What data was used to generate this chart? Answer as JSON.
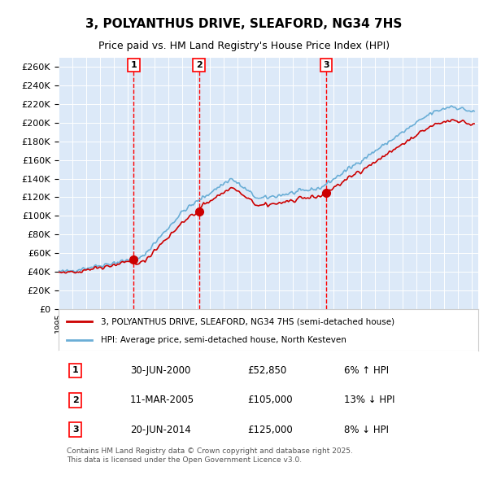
{
  "title": "3, POLYANTHUS DRIVE, SLEAFORD, NG34 7HS",
  "subtitle": "Price paid vs. HM Land Registry's House Price Index (HPI)",
  "legend_line1": "3, POLYANTHUS DRIVE, SLEAFORD, NG34 7HS (semi-detached house)",
  "legend_line2": "HPI: Average price, semi-detached house, North Kesteven",
  "sale1_date": "30-JUN-2000",
  "sale1_price": 52850,
  "sale1_pct": "6% ↑ HPI",
  "sale2_date": "11-MAR-2005",
  "sale2_price": 105000,
  "sale2_pct": "13% ↓ HPI",
  "sale3_date": "20-JUN-2014",
  "sale3_price": 125000,
  "sale3_pct": "8% ↓ HPI",
  "footer": "Contains HM Land Registry data © Crown copyright and database right 2025.\nThis data is licensed under the Open Government Licence v3.0.",
  "bg_color": "#dce9f8",
  "plot_bg_color": "#dce9f8",
  "hpi_color": "#6aaed6",
  "price_color": "#cc0000",
  "dashed_color": "#ff0000",
  "ylim": [
    0,
    270000
  ],
  "yticks": [
    0,
    20000,
    40000,
    60000,
    80000,
    100000,
    120000,
    140000,
    160000,
    180000,
    200000,
    220000,
    240000,
    260000
  ]
}
